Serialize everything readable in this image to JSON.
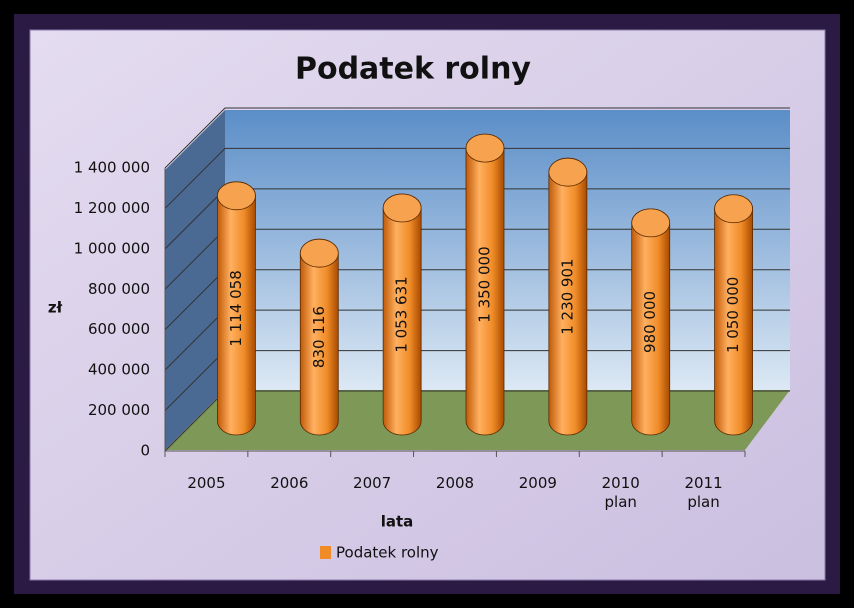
{
  "chart_data": {
    "type": "bar",
    "title": "Podatek rolny",
    "x_label": "lata",
    "y_label": "zł",
    "categories": [
      "2005",
      "2006",
      "2007",
      "2008",
      "2009",
      "2010 plan",
      "2011 plan"
    ],
    "series": [
      {
        "name": "Podatek rolny",
        "color": "#f08c28",
        "values": [
          1114058,
          830116,
          1053631,
          1350000,
          1230901,
          980000,
          1050000
        ],
        "value_labels": [
          "1 114 058",
          "830 116",
          "1 053 631",
          "1 350 000",
          "1 230 901",
          "980 000",
          "1 050 000"
        ]
      }
    ],
    "ylim": [
      0,
      1400000
    ],
    "yticks": [
      0,
      {
        "value": 200000,
        "label": "200 000"
      },
      {
        "value": 400000,
        "label": "400 000"
      },
      {
        "value": 600000,
        "label": "600 000"
      },
      {
        "value": 800000,
        "label": "800 000"
      },
      {
        "value": 1000000,
        "label": "1 000 000"
      },
      {
        "value": 1200000,
        "label": "1 200 000"
      },
      {
        "value": 1400000,
        "label": "1 400 000"
      }
    ],
    "grid": true,
    "legend": "bottom"
  }
}
